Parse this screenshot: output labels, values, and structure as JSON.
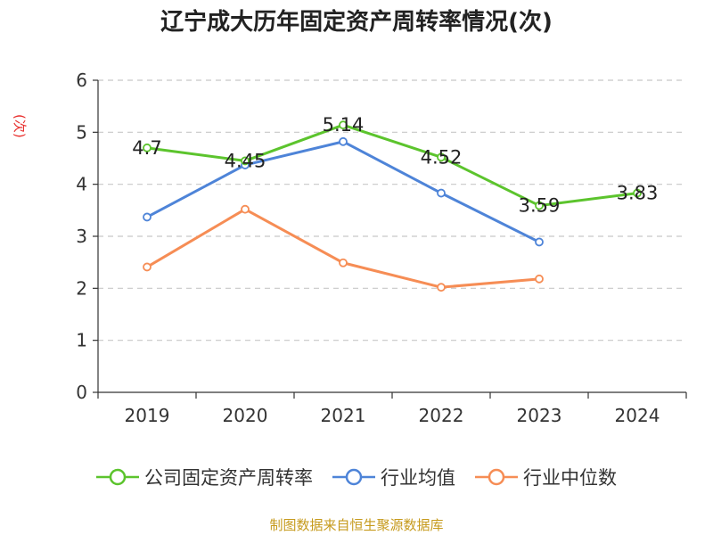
{
  "title": "辽宁成大历年固定资产周转率情况(次)",
  "source": "制图数据来自恒生聚源数据库",
  "chart_data": {
    "type": "line",
    "title": "辽宁成大历年固定资产周转率情况(次)",
    "ylabel": "(次)",
    "xlabel": "",
    "categories": [
      "2019",
      "2020",
      "2021",
      "2022",
      "2023",
      "2024"
    ],
    "ylim": [
      0,
      6
    ],
    "yticks": [
      0,
      1,
      2,
      3,
      4,
      5,
      6
    ],
    "grid": true,
    "legend_position": "bottom",
    "series": [
      {
        "name": "公司固定资产周转率",
        "color": "#5cc42d",
        "values": [
          4.7,
          4.45,
          5.14,
          4.52,
          3.59,
          3.83
        ],
        "labels": [
          "4.7",
          "4.45",
          "5.14",
          "4.52",
          "3.59",
          "3.83"
        ]
      },
      {
        "name": "行业均值",
        "color": "#4e84d8",
        "values": [
          3.37,
          4.37,
          4.82,
          3.83,
          2.89,
          null
        ]
      },
      {
        "name": "行业中位数",
        "color": "#f68d55",
        "values": [
          2.41,
          3.52,
          2.49,
          2.02,
          2.18,
          null
        ]
      }
    ]
  }
}
